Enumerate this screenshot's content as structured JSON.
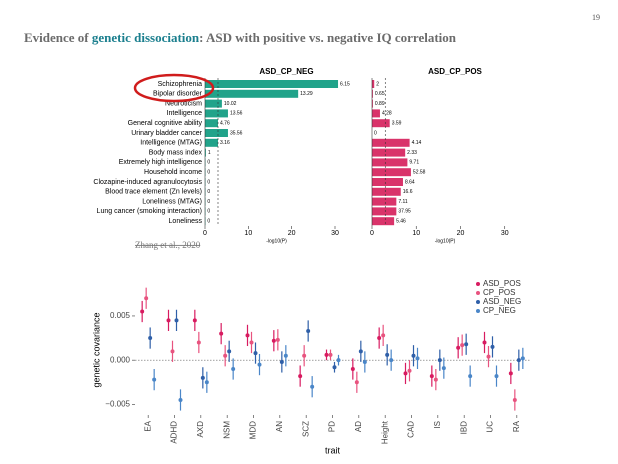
{
  "slide": {
    "page_number": "19",
    "title_parts": [
      "Evidence of ",
      "genetic dissociation",
      ": ASD with positive vs. negative IQ correlation"
    ],
    "citation": "Zhang et al., 2020"
  },
  "chart_data": [
    {
      "type": "barh",
      "title": "ASD_CP_NEG",
      "categories": [
        "Schizophrenia",
        "Bipolar disorder",
        "Neuroticism",
        "Intelligence",
        "General cognitive ability",
        "Urinary bladder cancer",
        "Intelligence (MTAG)",
        "Body mass index",
        "Extremely high intelligence",
        "Household income",
        "Clozapine-induced agranulocytosis",
        "Blood trace element (Zn levels)",
        "Loneliness (MTAG)",
        "Lung cancer (smoking interaction)",
        "Loneliness"
      ],
      "values": [
        30.7,
        21.5,
        3.9,
        5.3,
        3,
        5.3,
        3,
        0.2,
        0.1,
        0.1,
        0.1,
        0.1,
        0.1,
        0.1,
        0.1
      ],
      "annotations": [
        "6.15",
        "13.29",
        "10.02",
        "13.56",
        "4.76",
        "35.56",
        "3.16",
        "1",
        "0",
        "0",
        "0",
        "0",
        "0",
        "0",
        "0"
      ],
      "color": "#21a38a",
      "xlim": [
        0,
        33
      ],
      "xticks": [
        0,
        10,
        20,
        30
      ],
      "xlabel": "-log10(P)",
      "threshold": 3
    },
    {
      "type": "barh",
      "title": "ASD_CP_POS",
      "values": [
        0.5,
        0.2,
        0.2,
        1.8,
        4,
        0,
        8.5,
        7.5,
        8,
        8.8,
        7,
        6.5,
        5.5,
        5.5,
        5
      ],
      "annotations": [
        "2",
        "0.65",
        "0.89",
        "4.28",
        "3.59",
        "0",
        "4.14",
        "2.33",
        "9.71",
        "52.58",
        "8.64",
        "16.6",
        "7.11",
        "37.95",
        "5.46"
      ],
      "color": "#d9336a",
      "xlim": [
        0,
        33
      ],
      "xticks": [
        0,
        10,
        20,
        30
      ],
      "xlabel": "-log10(P)",
      "threshold": 3
    },
    {
      "type": "errorpoint",
      "categories": [
        "EA",
        "ADHD",
        "AXD",
        "NSM",
        "MDD",
        "AN",
        "SCZ",
        "PD",
        "AD",
        "Height",
        "CAD",
        "IS",
        "IBD",
        "UC",
        "RA"
      ],
      "series": [
        {
          "name": "ASD_POS",
          "color": "#d81b60",
          "values": [
            0.0055,
            0.0045,
            0.0045,
            0.003,
            0.0028,
            0.0022,
            -0.0018,
            0.0006,
            -0.001,
            0.0025,
            -0.0015,
            -0.0018,
            0.0014,
            0.002,
            -0.0015
          ],
          "errors": [
            0.0012,
            0.0012,
            0.0012,
            0.0012,
            0.0012,
            0.0012,
            0.0012,
            0.0006,
            0.0012,
            0.0012,
            0.0012,
            0.0012,
            0.0012,
            0.0012,
            0.0012
          ]
        },
        {
          "name": "CP_POS",
          "color": "#e8537f",
          "values": [
            0.007,
            0.001,
            0.002,
            0.0005,
            0.002,
            0.0023,
            0.0005,
            0.0006,
            -0.0025,
            0.0028,
            -0.0012,
            -0.0022,
            0.0017,
            0.0004,
            -0.0045
          ],
          "errors": [
            0.0012,
            0.0012,
            0.0012,
            0.0012,
            0.0012,
            0.0012,
            0.0012,
            0.0006,
            0.0012,
            0.0012,
            0.0012,
            0.0012,
            0.0012,
            0.0012,
            0.0012
          ]
        },
        {
          "name": "ASD_NEG",
          "color": "#2f5fa8",
          "values": [
            0.0025,
            0.0045,
            -0.002,
            0.001,
            0.0008,
            -0.0002,
            0.0033,
            -0.0008,
            0.001,
            0.0006,
            0.0005,
            0,
            0.0018,
            0.0015,
            0
          ],
          "errors": [
            0.0012,
            0.0012,
            0.0012,
            0.0012,
            0.0012,
            0.0012,
            0.0012,
            0.0006,
            0.0012,
            0.0012,
            0.0012,
            0.0012,
            0.0012,
            0.0012,
            0.0012
          ]
        },
        {
          "name": "CP_NEG",
          "color": "#4a86c8",
          "values": [
            -0.0022,
            -0.0045,
            -0.0025,
            -0.001,
            -0.0005,
            0.0005,
            -0.003,
            0,
            -0.0002,
            0,
            0.0002,
            -0.0009,
            -0.0018,
            -0.0018,
            0.0002
          ],
          "errors": [
            0.0012,
            0.0012,
            0.0012,
            0.0012,
            0.0012,
            0.0012,
            0.0012,
            0.0006,
            0.0012,
            0.0012,
            0.0012,
            0.0012,
            0.0012,
            0.0012,
            0.0012
          ]
        }
      ],
      "ylim": [
        -0.0062,
        0.0085
      ],
      "yticks": [
        {
          "value": -0.005,
          "label": "−0.005"
        },
        {
          "value": 0,
          "label": "0.000"
        },
        {
          "value": 0.005,
          "label": "0.005"
        }
      ],
      "xlabel": "trait",
      "ylabel": "genetic covariance",
      "legend": "top-right"
    }
  ]
}
